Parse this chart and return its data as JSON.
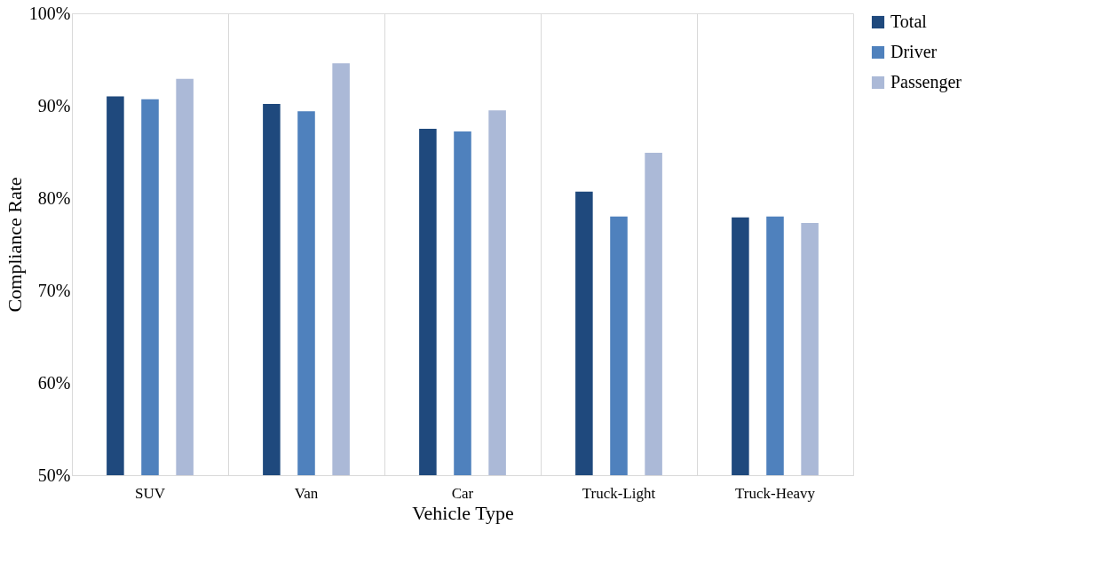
{
  "chart_data": {
    "type": "bar",
    "xlabel": "Vehicle Type",
    "ylabel": "Compliance Rate",
    "categories": [
      "SUV",
      "Van",
      "Car",
      "Truck-Light",
      "Truck-Heavy"
    ],
    "series": [
      {
        "name": "Total",
        "color": "#1f497d",
        "values": [
          91.0,
          90.2,
          87.5,
          80.7,
          77.9
        ]
      },
      {
        "name": "Driver",
        "color": "#4f81bd",
        "values": [
          90.7,
          89.4,
          87.2,
          78.0,
          78.0
        ]
      },
      {
        "name": "Passenger",
        "color": "#abb9d7",
        "values": [
          92.9,
          94.6,
          89.5,
          84.9,
          77.3
        ]
      }
    ],
    "ylim": [
      50,
      100
    ],
    "yticks": [
      {
        "value": 50,
        "label": "50%"
      },
      {
        "value": 60,
        "label": "60%"
      },
      {
        "value": 70,
        "label": "70%"
      },
      {
        "value": 80,
        "label": "80%"
      },
      {
        "value": 90,
        "label": "90%"
      },
      {
        "value": 100,
        "label": "100%"
      }
    ],
    "grid": "x",
    "legend": "right"
  }
}
